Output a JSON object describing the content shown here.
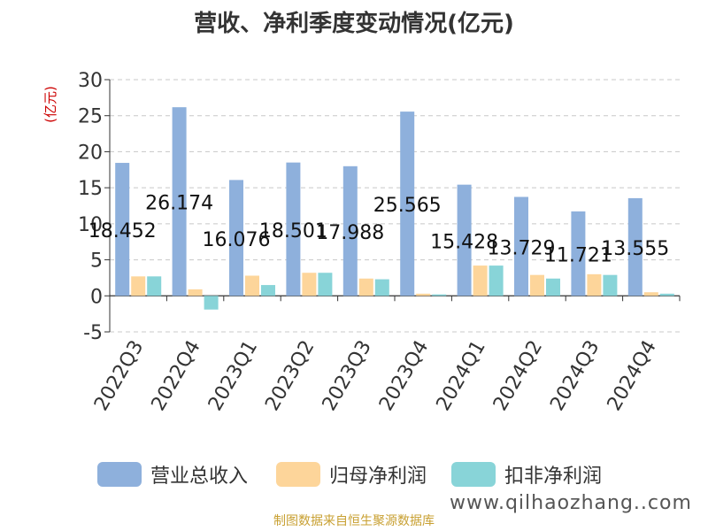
{
  "chart_data": {
    "type": "bar",
    "title": "营收、净利季度变动情况(亿元)",
    "ylabel": "(亿元)",
    "ylim": [
      -5,
      30
    ],
    "yticks": [
      -5,
      0,
      5,
      10,
      15,
      20,
      25,
      30
    ],
    "grid": true,
    "legend_position": "bottom",
    "categories": [
      "2022Q3",
      "2022Q4",
      "2023Q1",
      "2023Q2",
      "2023Q3",
      "2023Q4",
      "2024Q1",
      "2024Q2",
      "2024Q3",
      "2024Q4"
    ],
    "series": [
      {
        "name": "营业总收入",
        "color": "#8eb0dc",
        "values": [
          18.452,
          26.174,
          16.076,
          18.501,
          17.988,
          25.565,
          15.428,
          13.729,
          11.721,
          13.555
        ],
        "data_labels": [
          "18.452",
          "26.174",
          "16.076",
          "18.501",
          "17.988",
          "25.565",
          "15.428",
          "13.729",
          "11.721",
          "13.555"
        ]
      },
      {
        "name": "归母净利润",
        "color": "#fdd59a",
        "values": [
          2.7,
          0.9,
          2.8,
          3.2,
          2.4,
          0.3,
          4.2,
          2.9,
          3.0,
          0.5
        ]
      },
      {
        "name": "扣非净利润",
        "color": "#88d4d8",
        "values": [
          2.7,
          -1.9,
          1.5,
          3.2,
          2.3,
          0.2,
          4.2,
          2.4,
          2.9,
          0.3
        ]
      }
    ]
  },
  "footer": {
    "source": "制图数据来自恒生聚源数据库",
    "watermark": "www.qilhaozhang..com"
  }
}
